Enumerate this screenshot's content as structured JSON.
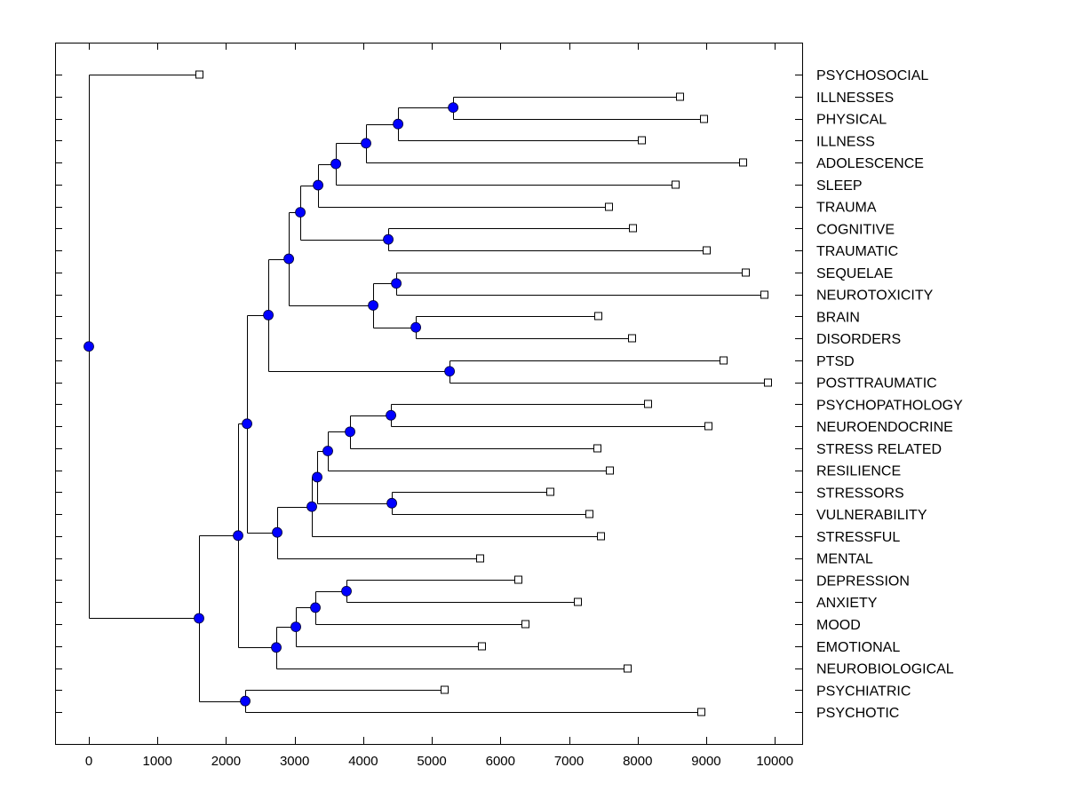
{
  "chart_data": {
    "type": "dendrogram",
    "title": "",
    "xlabel": "",
    "ylabel": "",
    "orientation": "left-to-right",
    "xlim": [
      -500,
      10400
    ],
    "xticks": [
      0,
      1000,
      2000,
      3000,
      4000,
      5000,
      6000,
      7000,
      8000,
      9000,
      10000
    ],
    "xtick_labels": [
      "0",
      "1000",
      "2000",
      "3000",
      "4000",
      "5000",
      "6000",
      "7000",
      "8000",
      "9000",
      "10000"
    ],
    "grid": false,
    "node_color": "#0000ff",
    "leaf_marker": "open-square",
    "leaves": [
      {
        "label": "PSYCHOSOCIAL",
        "value": 1606
      },
      {
        "label": "ILLNESSES",
        "value": 8614
      },
      {
        "label": "PHYSICAL",
        "value": 8964
      },
      {
        "label": "ILLNESS",
        "value": 8057
      },
      {
        "label": "ADOLESCENCE",
        "value": 9534
      },
      {
        "label": "SLEEP",
        "value": 8549
      },
      {
        "label": "TRAUMA",
        "value": 7578
      },
      {
        "label": "COGNITIVE",
        "value": 7927
      },
      {
        "label": "TRAUMATIC",
        "value": 9003
      },
      {
        "label": "SEQUELAE",
        "value": 9573
      },
      {
        "label": "NEUROTOXICITY",
        "value": 9845
      },
      {
        "label": "BRAIN",
        "value": 7422
      },
      {
        "label": "DISORDERS",
        "value": 7915
      },
      {
        "label": "PTSD",
        "value": 9249
      },
      {
        "label": "POSTTRAUMATIC",
        "value": 9896
      },
      {
        "label": "PSYCHOPATHOLOGY",
        "value": 8148
      },
      {
        "label": "NEUROENDOCRINE",
        "value": 9028
      },
      {
        "label": "STRESS RELATED",
        "value": 7409
      },
      {
        "label": "RESILIENCE",
        "value": 7591
      },
      {
        "label": "STRESSORS",
        "value": 6723
      },
      {
        "label": "VULNERABILITY",
        "value": 7293
      },
      {
        "label": "STRESSFUL",
        "value": 7461
      },
      {
        "label": "MENTAL",
        "value": 5699
      },
      {
        "label": "DEPRESSION",
        "value": 6256
      },
      {
        "label": "ANXIETY",
        "value": 7124
      },
      {
        "label": "MOOD",
        "value": 6360
      },
      {
        "label": "EMOTIONAL",
        "value": 5725
      },
      {
        "label": "NEUROBIOLOGICAL",
        "value": 7850
      },
      {
        "label": "PSYCHIATRIC",
        "value": 5181
      },
      {
        "label": "PSYCHOTIC",
        "value": 8925
      }
    ],
    "tree": {
      "value": 0,
      "children": [
        {
          "leaf": 0
        },
        {
          "value": 1606,
          "children": [
            {
              "value": 2176,
              "children": [
                {
                  "value": 2306,
                  "children": [
                    {
                      "value": 2617,
                      "children": [
                        {
                          "value": 2915,
                          "children": [
                            {
                              "value": 3083,
                              "children": [
                                {
                                  "value": 3342,
                                  "children": [
                                    {
                                      "value": 3601,
                                      "children": [
                                        {
                                          "value": 4041,
                                          "children": [
                                            {
                                              "value": 4508,
                                              "children": [
                                                {
                                                  "value": 5311,
                                                  "children": [
                                                    {
                                                      "leaf": 1
                                                    },
                                                    {
                                                      "leaf": 2
                                                    }
                                                  ]
                                                },
                                                {
                                                  "leaf": 3
                                                }
                                              ]
                                            },
                                            {
                                              "leaf": 4
                                            }
                                          ]
                                        },
                                        {
                                          "leaf": 5
                                        }
                                      ]
                                    },
                                    {
                                      "leaf": 6
                                    }
                                  ]
                                },
                                {
                                  "value": 4365,
                                  "children": [
                                    {
                                      "leaf": 7
                                    },
                                    {
                                      "leaf": 8
                                    }
                                  ]
                                }
                              ]
                            },
                            {
                              "value": 4145,
                              "children": [
                                {
                                  "value": 4482,
                                  "children": [
                                    {
                                      "leaf": 9
                                    },
                                    {
                                      "leaf": 10
                                    }
                                  ]
                                },
                                {
                                  "value": 4767,
                                  "children": [
                                    {
                                      "leaf": 11
                                    },
                                    {
                                      "leaf": 12
                                    }
                                  ]
                                }
                              ]
                            }
                          ]
                        },
                        {
                          "value": 5259,
                          "children": [
                            {
                              "leaf": 13
                            },
                            {
                              "leaf": 14
                            }
                          ]
                        }
                      ]
                    },
                    {
                      "value": 2746,
                      "children": [
                        {
                          "value": 3251,
                          "children": [
                            {
                              "value": 3329,
                              "children": [
                                {
                                  "value": 3484,
                                  "children": [
                                    {
                                      "value": 3808,
                                      "children": [
                                        {
                                          "value": 4404,
                                          "children": [
                                            {
                                              "leaf": 15
                                            },
                                            {
                                              "leaf": 16
                                            }
                                          ]
                                        },
                                        {
                                          "leaf": 17
                                        }
                                      ]
                                    },
                                    {
                                      "leaf": 18
                                    }
                                  ]
                                },
                                {
                                  "value": 4417,
                                  "children": [
                                    {
                                      "leaf": 19
                                    },
                                    {
                                      "leaf": 20
                                    }
                                  ]
                                }
                              ]
                            },
                            {
                              "leaf": 21
                            }
                          ]
                        },
                        {
                          "leaf": 22
                        }
                      ]
                    }
                  ]
                },
                {
                  "value": 2733,
                  "children": [
                    {
                      "value": 3018,
                      "children": [
                        {
                          "value": 3303,
                          "children": [
                            {
                              "value": 3756,
                              "children": [
                                {
                                  "leaf": 23
                                },
                                {
                                  "leaf": 24
                                }
                              ]
                            },
                            {
                              "leaf": 25
                            }
                          ]
                        },
                        {
                          "leaf": 26
                        }
                      ]
                    },
                    {
                      "leaf": 27
                    }
                  ]
                }
              ]
            },
            {
              "value": 2280,
              "children": [
                {
                  "leaf": 28
                },
                {
                  "leaf": 29
                }
              ]
            }
          ]
        }
      ]
    }
  }
}
